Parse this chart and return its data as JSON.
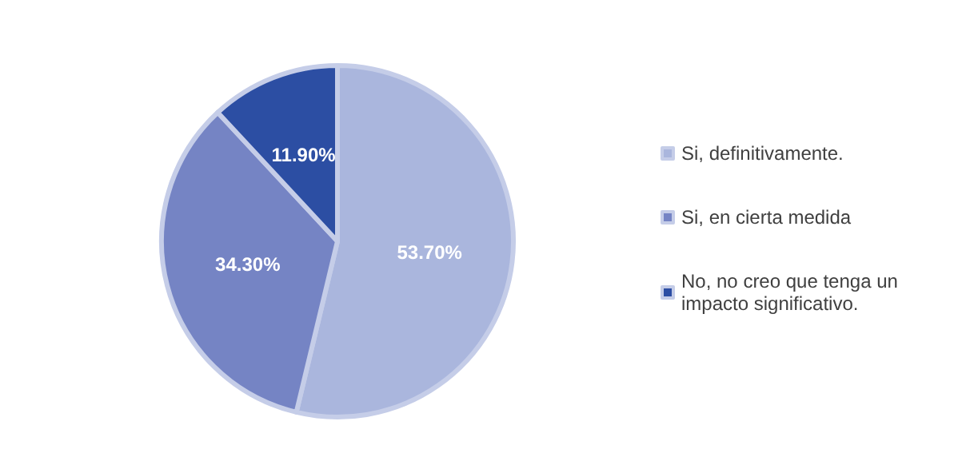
{
  "chart_data": {
    "type": "pie",
    "categories": [
      "Si, definitivamente.",
      "Si, en cierta medida",
      "No, no creo que tenga un impacto significativo."
    ],
    "values": [
      53.7,
      34.3,
      11.9
    ],
    "colors": [
      "#aab6dd",
      "#7584c4",
      "#2c4ea3"
    ],
    "value_labels": [
      "53.70%",
      "34.30%",
      "11.90%"
    ],
    "legend": "right"
  }
}
